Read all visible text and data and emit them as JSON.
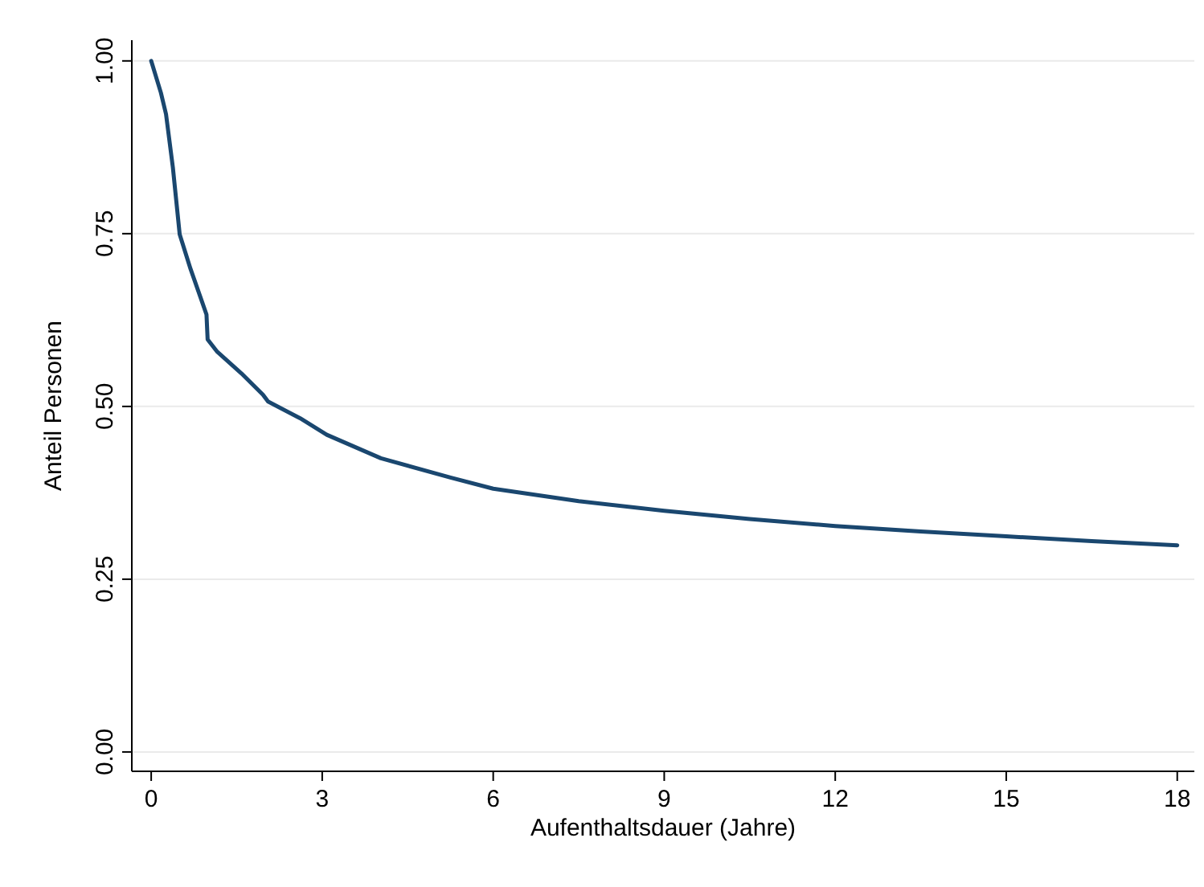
{
  "chart_data": {
    "type": "line",
    "xlabel": "Aufenthaltsdauer (Jahre)",
    "ylabel": "Anteil Personen",
    "xlim": [
      -0.34,
      18.3
    ],
    "xticks": [
      0,
      3,
      6,
      9,
      12,
      15,
      18
    ],
    "ylim": [
      -0.028,
      1.03
    ],
    "yticks": [
      {
        "value": 0,
        "label": "0.00"
      },
      {
        "value": 0.25,
        "label": "0.25"
      },
      {
        "value": 0.5,
        "label": "0.50"
      },
      {
        "value": 0.75,
        "label": "0.75"
      },
      {
        "value": 1,
        "label": "1.00"
      }
    ],
    "grid": "y",
    "series": [
      {
        "color": "#1a476f",
        "x": [
          0,
          0.17,
          0.26,
          0.38,
          0.5,
          0.69,
          0.97,
          0.99,
          1.16,
          1.58,
          1.96,
          2.05,
          2.61,
          3.08,
          4.03,
          5.25,
          6,
          7.5,
          9,
          10.5,
          12,
          13.5,
          15,
          16.5,
          18
        ],
        "values": [
          1.0,
          0.954,
          0.923,
          0.846,
          0.749,
          0.699,
          0.633,
          0.597,
          0.579,
          0.548,
          0.517,
          0.507,
          0.483,
          0.459,
          0.425,
          0.397,
          0.381,
          0.363,
          0.349,
          0.337,
          0.327,
          0.319,
          0.312,
          0.305,
          0.299
        ]
      }
    ]
  }
}
